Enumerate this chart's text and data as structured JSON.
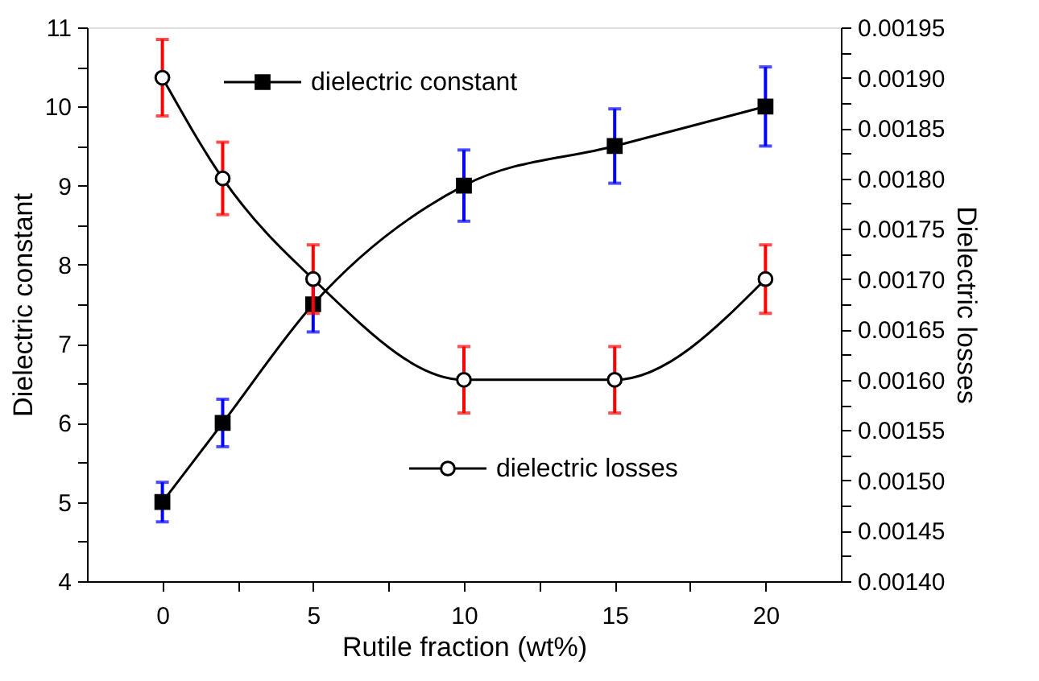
{
  "chart_data": {
    "type": "line",
    "xlabel": "Rutile fraction (wt%)",
    "ylabel": "Dielectric constant",
    "y2label": "Dielectric losses",
    "x": [
      0,
      2,
      5,
      10,
      15,
      20
    ],
    "xlim": [
      -2.5,
      22.5
    ],
    "xticks": [
      0,
      {
        "value": 2.5,
        "label": null
      },
      5,
      {
        "value": 7.5,
        "label": null
      },
      10,
      {
        "value": 12.5,
        "label": null
      },
      15,
      {
        "value": 17.5,
        "label": null
      },
      20
    ],
    "ylim": [
      4,
      11
    ],
    "yticks": [
      4,
      {
        "value": 4.5,
        "label": null
      },
      5,
      {
        "value": 5.5,
        "label": null
      },
      6,
      {
        "value": 6.5,
        "label": null
      },
      7,
      {
        "value": 7.5,
        "label": null
      },
      8,
      {
        "value": 8.5,
        "label": null
      },
      9,
      {
        "value": 9.5,
        "label": null
      },
      10,
      {
        "value": 10.5,
        "label": null
      },
      11
    ],
    "y2lim": [
      0.0014,
      0.00195
    ],
    "y2ticks": [
      {
        "value": 0.0014,
        "label": "0.00140"
      },
      {
        "value": 0.001425,
        "label": null
      },
      {
        "value": 0.00145,
        "label": "0.00145"
      },
      {
        "value": 0.001475,
        "label": null
      },
      {
        "value": 0.0015,
        "label": "0.00150"
      },
      {
        "value": 0.001525,
        "label": null
      },
      {
        "value": 0.00155,
        "label": "0.00155"
      },
      {
        "value": 0.001575,
        "label": null
      },
      {
        "value": 0.0016,
        "label": "0.00160"
      },
      {
        "value": 0.001625,
        "label": null
      },
      {
        "value": 0.00165,
        "label": "0.00165"
      },
      {
        "value": 0.001675,
        "label": null
      },
      {
        "value": 0.0017,
        "label": "0.00170"
      },
      {
        "value": 0.001725,
        "label": null
      },
      {
        "value": 0.00175,
        "label": "0.00175"
      },
      {
        "value": 0.001775,
        "label": null
      },
      {
        "value": 0.0018,
        "label": "0.00180"
      },
      {
        "value": 0.001825,
        "label": null
      },
      {
        "value": 0.00185,
        "label": "0.00185"
      },
      {
        "value": 0.001875,
        "label": null
      },
      {
        "value": 0.0019,
        "label": "0.00190"
      },
      {
        "value": 0.001925,
        "label": null
      },
      {
        "value": 0.00195,
        "label": "0.00195"
      }
    ],
    "grid": false,
    "legend": "top left",
    "line_style": "solid",
    "series": [
      {
        "name": "dielectric constant",
        "color": "#000000",
        "marker": "square",
        "values": [
          5,
          6,
          7.5,
          9,
          9.5,
          10
        ],
        "errors": [
          0.25,
          0.3,
          0.35,
          0.45,
          0.47,
          0.5
        ]
      },
      {
        "name": "dielectric losses",
        "color": "#000000",
        "marker": "circle",
        "axis": "y2",
        "values": [
          0.0019,
          0.0018,
          0.0017,
          0.0016,
          0.0016,
          0.0017
        ],
        "errors": [
          3.8e-05,
          3.6e-05,
          3.4e-05,
          3.3e-05,
          3.3e-05,
          3.4e-05
        ]
      }
    ]
  }
}
